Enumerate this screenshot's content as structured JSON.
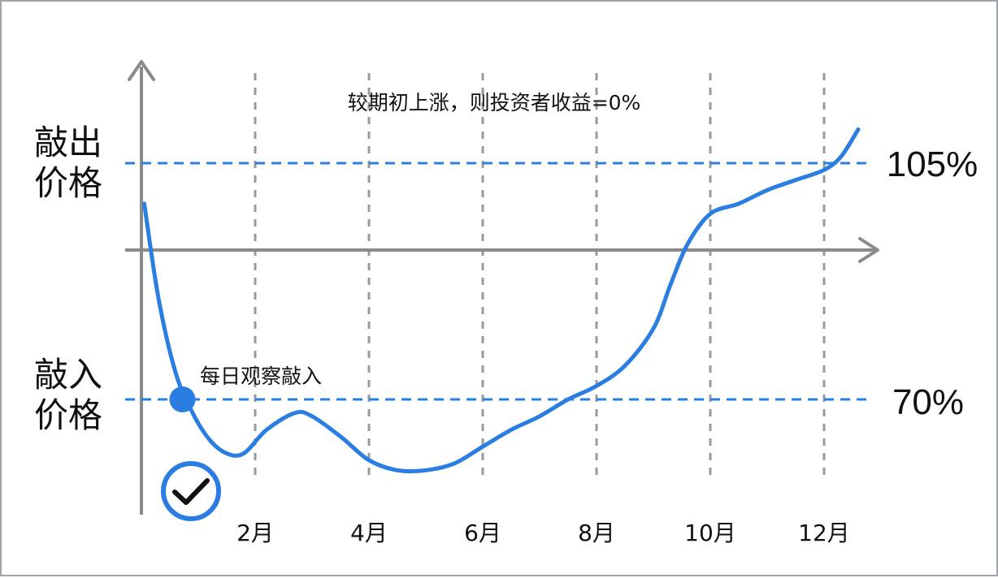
{
  "chart_data": {
    "type": "line",
    "title": "",
    "xlabel": "",
    "ylabel": "",
    "x_ticks": [
      "2月",
      "4月",
      "6月",
      "8月",
      "10月",
      "12月"
    ],
    "x_tick_months": [
      2,
      4,
      6,
      8,
      10,
      12
    ],
    "xlim": [
      0,
      12.6
    ],
    "ylim": [
      50,
      120
    ],
    "grid": {
      "x": "dashed-vertical",
      "y": false
    },
    "reference_lines": [
      {
        "label": "105%",
        "value": 105,
        "side_label": "敲出价格"
      },
      {
        "label": "70%",
        "value": 70,
        "side_label": "敲入价格"
      }
    ],
    "series": [
      {
        "color": "#2a7de1",
        "x": [
          0.05,
          0.3,
          0.6,
          0.9,
          1.2,
          1.5,
          1.8,
          2.2,
          2.7,
          3.0,
          3.5,
          4.0,
          4.5,
          5.0,
          5.5,
          6.0,
          6.5,
          7.0,
          7.5,
          8.0,
          8.5,
          9.0,
          9.3,
          9.6,
          10.0,
          10.5,
          11.0,
          11.5,
          12.0,
          12.3,
          12.6
        ],
        "y": [
          99,
          85,
          74,
          68,
          64,
          62,
          62,
          65.5,
          68,
          67.5,
          64.5,
          61,
          59.5,
          59.5,
          60.5,
          63,
          65.5,
          67.5,
          70,
          72,
          75,
          80.5,
          87,
          93,
          97.5,
          99,
          101,
          102.5,
          104,
          106,
          110
        ]
      }
    ],
    "annotations": [
      {
        "text": "较期初上涨，则投资者收益=0%"
      },
      {
        "text": "每日观察敲入",
        "x": 0.35,
        "y": 70
      }
    ],
    "colors": {
      "accent": "#2a7de1",
      "axis": "#8a8a8a",
      "grid": "#9a9a9a"
    },
    "icons": [
      "check-circle-icon",
      "knock-in-marker-dot"
    ]
  }
}
